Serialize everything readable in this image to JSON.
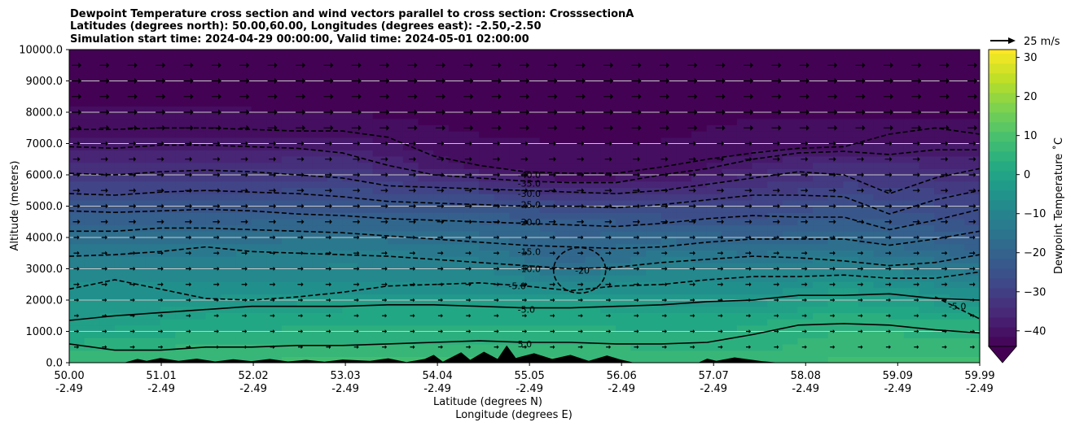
{
  "chart_data": {
    "type": "filled-contour cross section",
    "title_lines": [
      "Dewpoint Temperature cross section and wind vectors parallel to cross section: CrosssectionA",
      "Latitudes (degrees north): 50.00,60.00, Longitudes (degrees east): -2.50,-2.50",
      "Simulation start time: 2024-04-29 00:00:00, Valid time: 2024-05-01 02:00:00"
    ],
    "ylabel": "Altitude (meters)",
    "xlabel_lat": "Latitude (degrees N)",
    "xlabel_lon": "Longitude (degrees E)",
    "ylim": [
      0,
      10000
    ],
    "yticks": [
      0,
      1000,
      2000,
      3000,
      4000,
      5000,
      6000,
      7000,
      8000,
      9000,
      10000
    ],
    "ytick_labels": [
      "0.0",
      "1000.0",
      "2000.0",
      "3000.0",
      "4000.0",
      "5000.0",
      "6000.0",
      "7000.0",
      "8000.0",
      "9000.0",
      "10000.0"
    ],
    "xlim": [
      50.0,
      59.99
    ],
    "x_ticks": [
      {
        "lat": "50.00",
        "lon": "-2.49",
        "value": 50.0
      },
      {
        "lat": "51.01",
        "lon": "-2.49",
        "value": 51.01
      },
      {
        "lat": "52.02",
        "lon": "-2.49",
        "value": 52.02
      },
      {
        "lat": "53.03",
        "lon": "-2.49",
        "value": 53.03
      },
      {
        "lat": "54.04",
        "lon": "-2.49",
        "value": 54.04
      },
      {
        "lat": "55.05",
        "lon": "-2.49",
        "value": 55.05
      },
      {
        "lat": "56.06",
        "lon": "-2.49",
        "value": 56.06
      },
      {
        "lat": "57.07",
        "lon": "-2.49",
        "value": 57.07
      },
      {
        "lat": "58.08",
        "lon": "-2.49",
        "value": 58.08
      },
      {
        "lat": "59.09",
        "lon": "-2.49",
        "value": 59.09
      },
      {
        "lat": "59.99",
        "lon": "-2.49",
        "value": 59.99
      }
    ],
    "grid": "horizontal",
    "colorbar": {
      "label": "Dewpoint Temperature $^\\circ$C",
      "label_display": "Dewpoint Temperature ˚C",
      "range": [
        -44,
        32
      ],
      "ticks": [
        -40,
        -30,
        -20,
        -10,
        0,
        10,
        20,
        30
      ],
      "tick_labels": [
        "−40",
        "−30",
        "−20",
        "−10",
        "0",
        "10",
        "20",
        "30"
      ],
      "extend": "min",
      "colormap": "viridis"
    },
    "wind_reference": {
      "label": "25 m/s",
      "speed": 25
    },
    "contour_labels": [
      {
        "text": "-40.0",
        "lat": 54.92,
        "alt": 6000
      },
      {
        "text": "-35.0",
        "lat": 54.92,
        "alt": 5730
      },
      {
        "text": "-30.0",
        "lat": 54.92,
        "alt": 5400
      },
      {
        "text": "-25.0",
        "lat": 54.92,
        "alt": 5050
      },
      {
        "text": "-20.0",
        "lat": 54.92,
        "alt": 4500
      },
      {
        "text": "-15.0",
        "lat": 54.92,
        "alt": 3550
      },
      {
        "text": "-10.0",
        "lat": 54.92,
        "alt": 3000
      },
      {
        "text": "-5.0",
        "lat": 54.82,
        "alt": 2450
      },
      {
        "text": "-20",
        "lat": 55.55,
        "alt": 2950
      },
      {
        "text": "-5.0",
        "lat": 54.92,
        "alt": 1700
      },
      {
        "text": "5.0",
        "lat": 54.92,
        "alt": 600
      },
      {
        "text": "-5.0",
        "lat": 59.65,
        "alt": 1800
      }
    ],
    "contour_levels_dashed": [
      -40,
      -35,
      -30,
      -25,
      -20,
      -15,
      -10,
      -5
    ],
    "contour_levels_solid": [
      -5,
      0,
      5
    ],
    "colors": {
      "contour": "#000000",
      "grid": "#c8c8c8",
      "terrain": "#000000"
    }
  }
}
